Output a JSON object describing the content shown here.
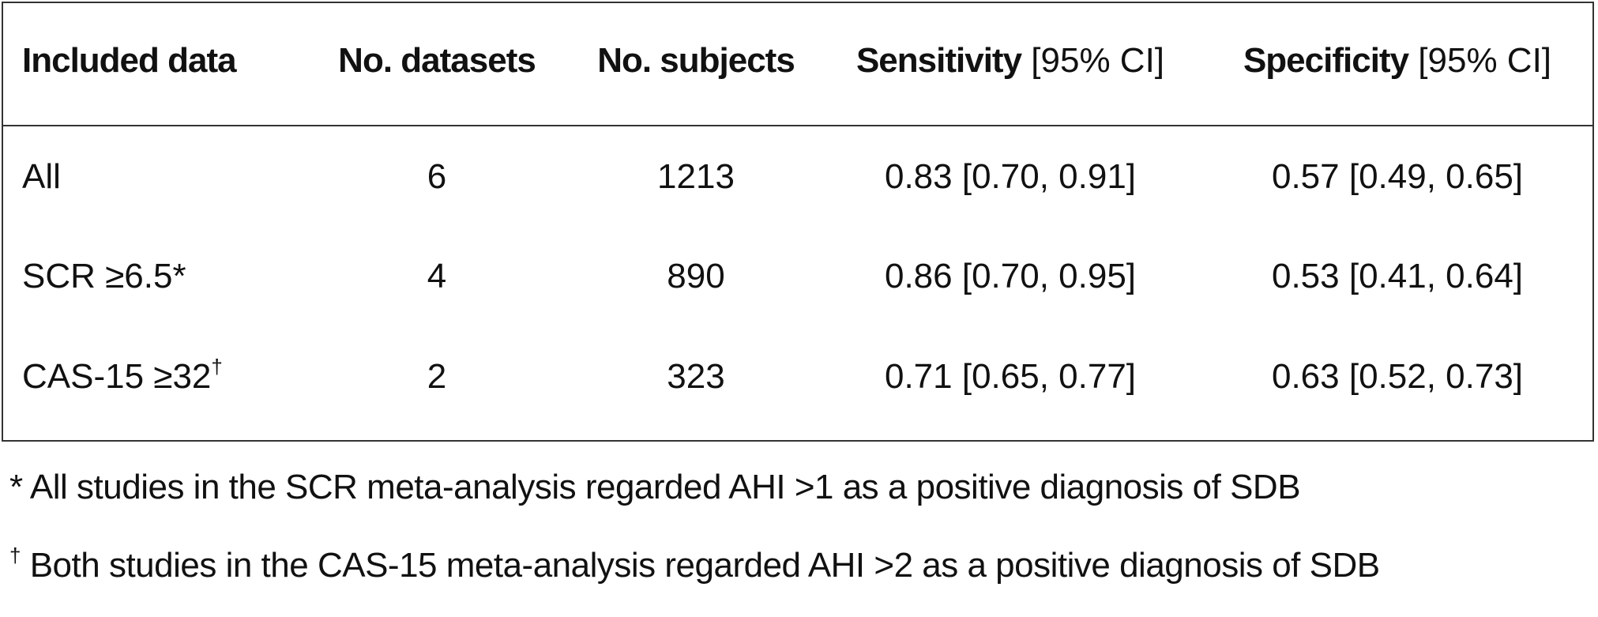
{
  "table": {
    "header": [
      {
        "bold": "Included data"
      },
      {
        "bold": "No. datasets"
      },
      {
        "bold": "No. subjects"
      },
      {
        "bold": "Sensitivity",
        "rest": "[95% CI]"
      },
      {
        "bold": "Specificity",
        "rest": "[95% CI]"
      }
    ],
    "rows": [
      [
        {
          "label": "All"
        },
        "6",
        "1213",
        "0.83 [0.70, 0.91]",
        "0.57 [0.49, 0.65]"
      ],
      [
        {
          "label": "SCR ≥6.5*"
        },
        "4",
        "890",
        "0.86 [0.70, 0.95]",
        "0.53 [0.41, 0.64]"
      ],
      [
        {
          "label": "CAS-15 ≥32",
          "mark": "†"
        },
        "2",
        "323",
        "0.71 [0.65, 0.77]",
        "0.63 [0.52, 0.73]"
      ]
    ]
  },
  "footnotes": [
    {
      "mark": "*",
      "text": "All studies in the SCR meta-analysis regarded AHI >1 as a positive diagnosis of SDB"
    },
    {
      "mark": "†",
      "text": "Both studies in the CAS-15 meta-analysis regarded AHI >2 as a positive diagnosis of SDB"
    }
  ]
}
